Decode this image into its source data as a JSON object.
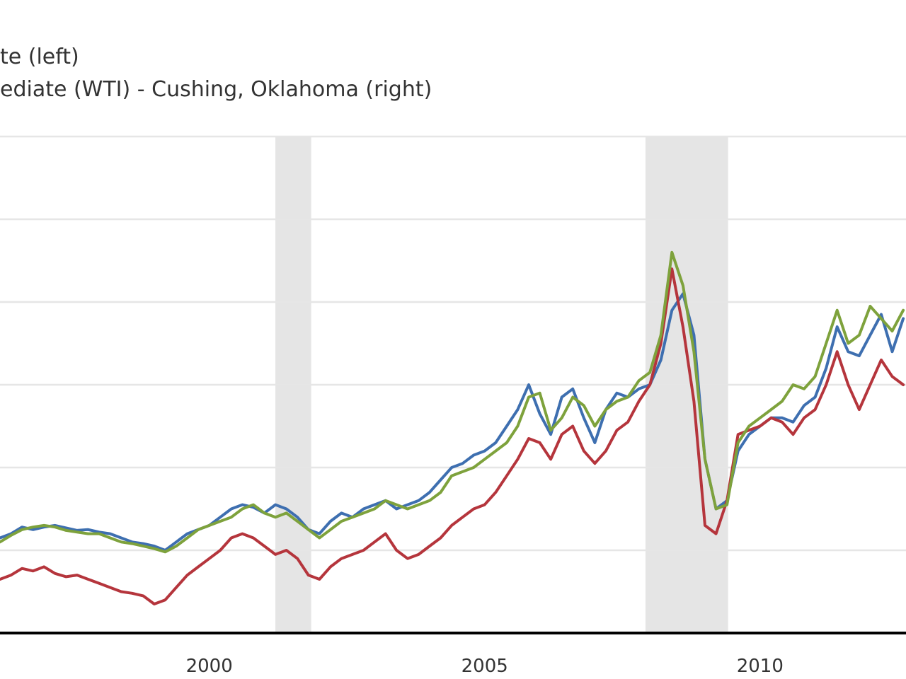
{
  "legend": {
    "item1": "te (left)",
    "item2": "ediate (WTI) - Cushing, Oklahoma (right)"
  },
  "colors": {
    "blue": "#3e6fb0",
    "red": "#b5353c",
    "green": "#7ea23c",
    "recession": "#e5e5e5",
    "axis": "#000000"
  },
  "chart_data": {
    "type": "line",
    "xlim": [
      1996.2,
      2012.65
    ],
    "ylim": [
      0,
      6
    ],
    "x_ticks": [
      2000,
      2005,
      2010
    ],
    "x_tick_labels": [
      "2000",
      "2005",
      "2010"
    ],
    "grid": true,
    "recessions": [
      [
        2001.2,
        2001.85
      ],
      [
        2007.92,
        2009.42
      ]
    ],
    "series": [
      {
        "color": "#3e6fb0",
        "x": [
          1996.2,
          1996.4,
          1996.6,
          1996.8,
          1997.0,
          1997.2,
          1997.4,
          1997.6,
          1997.8,
          1998.0,
          1998.2,
          1998.4,
          1998.6,
          1998.8,
          1999.0,
          1999.2,
          1999.4,
          1999.6,
          1999.8,
          2000.0,
          2000.2,
          2000.4,
          2000.6,
          2000.8,
          2001.0,
          2001.2,
          2001.4,
          2001.6,
          2001.8,
          2002.0,
          2002.2,
          2002.4,
          2002.6,
          2002.8,
          2003.0,
          2003.2,
          2003.4,
          2003.6,
          2003.8,
          2004.0,
          2004.2,
          2004.4,
          2004.6,
          2004.8,
          2005.0,
          2005.2,
          2005.4,
          2005.6,
          2005.8,
          2006.0,
          2006.2,
          2006.4,
          2006.6,
          2006.8,
          2007.0,
          2007.2,
          2007.4,
          2007.6,
          2007.8,
          2008.0,
          2008.2,
          2008.4,
          2008.6,
          2008.8,
          2009.0,
          2009.2,
          2009.4,
          2009.6,
          2009.8,
          2010.0,
          2010.2,
          2010.4,
          2010.6,
          2010.8,
          2011.0,
          2011.2,
          2011.4,
          2011.6,
          2011.8,
          2012.0,
          2012.2,
          2012.4,
          2012.6
        ],
        "values": [
          1.15,
          1.2,
          1.28,
          1.25,
          1.28,
          1.3,
          1.27,
          1.24,
          1.25,
          1.22,
          1.2,
          1.15,
          1.1,
          1.08,
          1.05,
          1.0,
          1.1,
          1.2,
          1.25,
          1.3,
          1.4,
          1.5,
          1.55,
          1.52,
          1.45,
          1.55,
          1.5,
          1.4,
          1.25,
          1.2,
          1.35,
          1.45,
          1.4,
          1.5,
          1.55,
          1.6,
          1.5,
          1.55,
          1.6,
          1.7,
          1.85,
          2.0,
          2.05,
          2.15,
          2.2,
          2.3,
          2.5,
          2.7,
          3.0,
          2.65,
          2.4,
          2.85,
          2.95,
          2.6,
          2.3,
          2.7,
          2.9,
          2.85,
          2.95,
          3.0,
          3.3,
          3.9,
          4.1,
          3.6,
          2.1,
          1.5,
          1.6,
          2.2,
          2.4,
          2.5,
          2.6,
          2.6,
          2.55,
          2.75,
          2.85,
          3.2,
          3.7,
          3.4,
          3.35,
          3.6,
          3.85,
          3.4,
          3.8
        ]
      },
      {
        "color": "#b5353c",
        "x": [
          1996.2,
          1996.4,
          1996.6,
          1996.8,
          1997.0,
          1997.2,
          1997.4,
          1997.6,
          1997.8,
          1998.0,
          1998.2,
          1998.4,
          1998.6,
          1998.8,
          1999.0,
          1999.2,
          1999.4,
          1999.6,
          1999.8,
          2000.0,
          2000.2,
          2000.4,
          2000.6,
          2000.8,
          2001.0,
          2001.2,
          2001.4,
          2001.6,
          2001.8,
          2002.0,
          2002.2,
          2002.4,
          2002.6,
          2002.8,
          2003.0,
          2003.2,
          2003.4,
          2003.6,
          2003.8,
          2004.0,
          2004.2,
          2004.4,
          2004.6,
          2004.8,
          2005.0,
          2005.2,
          2005.4,
          2005.6,
          2005.8,
          2006.0,
          2006.2,
          2006.4,
          2006.6,
          2006.8,
          2007.0,
          2007.2,
          2007.4,
          2007.6,
          2007.8,
          2008.0,
          2008.2,
          2008.4,
          2008.6,
          2008.8,
          2009.0,
          2009.2,
          2009.4,
          2009.6,
          2009.8,
          2010.0,
          2010.2,
          2010.4,
          2010.6,
          2010.8,
          2011.0,
          2011.2,
          2011.4,
          2011.6,
          2011.8,
          2012.0,
          2012.2,
          2012.4,
          2012.6
        ],
        "values": [
          0.65,
          0.7,
          0.78,
          0.75,
          0.8,
          0.72,
          0.68,
          0.7,
          0.65,
          0.6,
          0.55,
          0.5,
          0.48,
          0.45,
          0.35,
          0.4,
          0.55,
          0.7,
          0.8,
          0.9,
          1.0,
          1.15,
          1.2,
          1.15,
          1.05,
          0.95,
          1.0,
          0.9,
          0.7,
          0.65,
          0.8,
          0.9,
          0.95,
          1.0,
          1.1,
          1.2,
          1.0,
          0.9,
          0.95,
          1.05,
          1.15,
          1.3,
          1.4,
          1.5,
          1.55,
          1.7,
          1.9,
          2.1,
          2.35,
          2.3,
          2.1,
          2.4,
          2.5,
          2.2,
          2.05,
          2.2,
          2.45,
          2.55,
          2.8,
          3.0,
          3.5,
          4.4,
          3.7,
          2.8,
          1.3,
          1.2,
          1.6,
          2.4,
          2.45,
          2.5,
          2.6,
          2.55,
          2.4,
          2.6,
          2.7,
          3.0,
          3.4,
          3.0,
          2.7,
          3.0,
          3.3,
          3.1,
          3.0
        ]
      },
      {
        "color": "#7ea23c",
        "x": [
          1996.2,
          1996.4,
          1996.6,
          1996.8,
          1997.0,
          1997.2,
          1997.4,
          1997.6,
          1997.8,
          1998.0,
          1998.2,
          1998.4,
          1998.6,
          1998.8,
          1999.0,
          1999.2,
          1999.4,
          1999.6,
          1999.8,
          2000.0,
          2000.2,
          2000.4,
          2000.6,
          2000.8,
          2001.0,
          2001.2,
          2001.4,
          2001.6,
          2001.8,
          2002.0,
          2002.2,
          2002.4,
          2002.6,
          2002.8,
          2003.0,
          2003.2,
          2003.4,
          2003.6,
          2003.8,
          2004.0,
          2004.2,
          2004.4,
          2004.6,
          2004.8,
          2005.0,
          2005.2,
          2005.4,
          2005.6,
          2005.8,
          2006.0,
          2006.2,
          2006.4,
          2006.6,
          2006.8,
          2007.0,
          2007.2,
          2007.4,
          2007.6,
          2007.8,
          2008.0,
          2008.2,
          2008.4,
          2008.6,
          2008.8,
          2009.0,
          2009.2,
          2009.4,
          2009.6,
          2009.8,
          2010.0,
          2010.2,
          2010.4,
          2010.6,
          2010.8,
          2011.0,
          2011.2,
          2011.4,
          2011.6,
          2011.8,
          2012.0,
          2012.2,
          2012.4,
          2012.6
        ],
        "values": [
          1.1,
          1.18,
          1.25,
          1.28,
          1.3,
          1.28,
          1.24,
          1.22,
          1.2,
          1.2,
          1.15,
          1.1,
          1.08,
          1.05,
          1.02,
          0.98,
          1.05,
          1.15,
          1.25,
          1.3,
          1.35,
          1.4,
          1.5,
          1.55,
          1.45,
          1.4,
          1.45,
          1.35,
          1.25,
          1.15,
          1.25,
          1.35,
          1.4,
          1.45,
          1.5,
          1.6,
          1.55,
          1.5,
          1.55,
          1.6,
          1.7,
          1.9,
          1.95,
          2.0,
          2.1,
          2.2,
          2.3,
          2.5,
          2.85,
          2.9,
          2.45,
          2.6,
          2.85,
          2.75,
          2.5,
          2.7,
          2.8,
          2.85,
          3.05,
          3.15,
          3.6,
          4.6,
          4.2,
          3.4,
          2.1,
          1.5,
          1.55,
          2.3,
          2.5,
          2.6,
          2.7,
          2.8,
          3.0,
          2.95,
          3.1,
          3.5,
          3.9,
          3.5,
          3.6,
          3.95,
          3.8,
          3.65,
          3.9
        ]
      }
    ]
  }
}
